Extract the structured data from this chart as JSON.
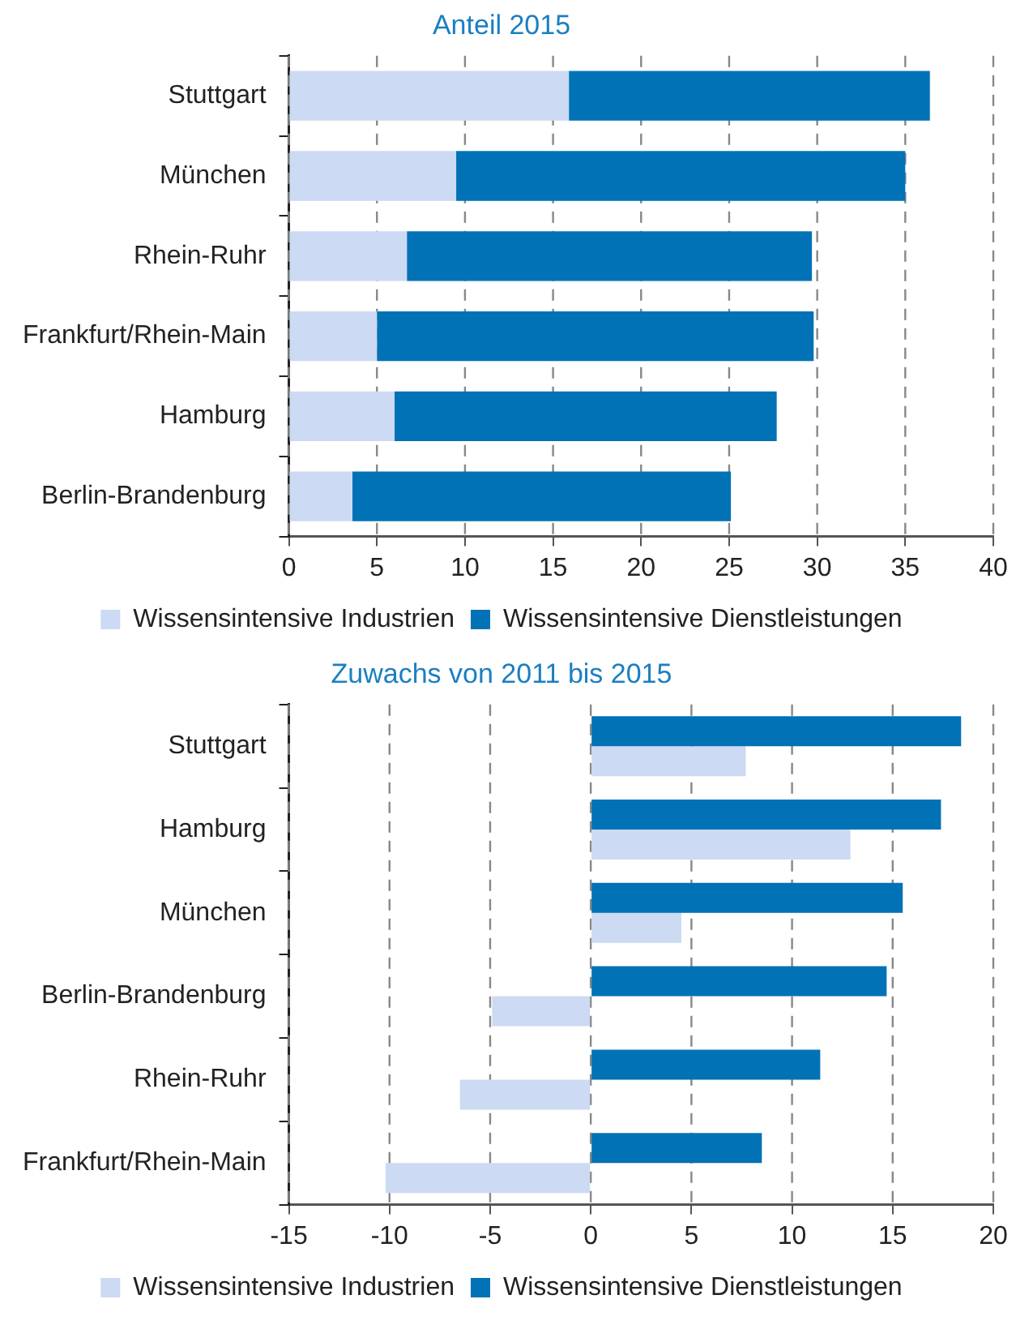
{
  "chart_data": [
    {
      "type": "bar",
      "title": "Anteil 2015",
      "orientation": "horizontal",
      "stacked": true,
      "categories": [
        "Stuttgart",
        "München",
        "Rhein-Ruhr",
        "Frankfurt/Rhein-Main",
        "Hamburg",
        "Berlin-Brandenburg"
      ],
      "series": [
        {
          "name": "Wissensintensive Industrien",
          "color": "#ccdaf3",
          "values": [
            15.9,
            9.5,
            6.7,
            5.0,
            6.0,
            3.6
          ]
        },
        {
          "name": "Wissensintensive Dienstleistungen",
          "color": "#0072b5",
          "values": [
            20.5,
            25.5,
            23.0,
            24.8,
            21.7,
            21.5
          ]
        }
      ],
      "xlim": [
        0,
        40
      ],
      "xticks": [
        0,
        5,
        10,
        15,
        20,
        25,
        30,
        35,
        40
      ],
      "grid": "x",
      "legend": "bottom"
    },
    {
      "type": "bar",
      "title": "Zuwachs von 2011 bis 2015",
      "orientation": "horizontal",
      "categories": [
        "Stuttgart",
        "Hamburg",
        "München",
        "Berlin-Brandenburg",
        "Rhein-Ruhr",
        "Frankfurt/Rhein-Main"
      ],
      "series": [
        {
          "name": "Wissensintensive Industrien",
          "color": "#ccdaf3",
          "values": [
            7.7,
            12.9,
            4.5,
            -4.9,
            -6.5,
            -10.2
          ]
        },
        {
          "name": "Wissensintensive Dienstleistungen",
          "color": "#0072b5",
          "values": [
            18.4,
            17.4,
            15.5,
            14.7,
            11.4,
            8.5
          ]
        }
      ],
      "xlim": [
        -15,
        20
      ],
      "xticks": [
        -15,
        -10,
        -5,
        0,
        5,
        10,
        15,
        20
      ],
      "grid": "x",
      "legend": "bottom"
    }
  ]
}
